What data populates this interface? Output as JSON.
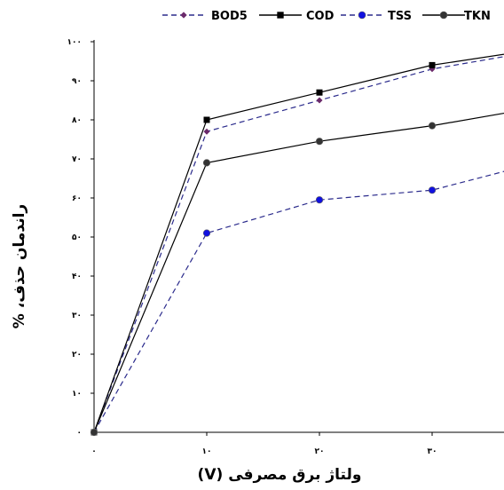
{
  "chart_data": {
    "type": "line",
    "xlabel": "ولتاژ برق مصرفی (V)",
    "ylabel": "راندمان حذف، %",
    "x": [
      0,
      10,
      20,
      30,
      38
    ],
    "xticks": [
      0,
      10,
      20,
      30
    ],
    "xtick_labels": [
      "۰",
      "۱۰",
      "۲۰",
      "۳۰"
    ],
    "yticks": [
      0,
      10,
      20,
      30,
      40,
      50,
      60,
      70,
      80,
      90,
      100
    ],
    "ytick_labels": [
      "۰",
      "۱۰",
      "۲۰",
      "۳۰",
      "۴۰",
      "۵۰",
      "۶۰",
      "۷۰",
      "۸۰",
      "۹۰",
      "۱۰۰"
    ],
    "xlim": [
      0,
      38
    ],
    "ylim": [
      0,
      100
    ],
    "grid": false,
    "legend_position": "top",
    "series": [
      {
        "name": "BOD5",
        "values": [
          0,
          77,
          85,
          93,
          97
        ],
        "color": "#2b2b8c",
        "line_style": "dashed",
        "marker": "diamond",
        "marker_color": "#6b2a6b",
        "marker_at": [
          true,
          true,
          true,
          true,
          false
        ]
      },
      {
        "name": "COD",
        "values": [
          0,
          80,
          87,
          94,
          97.5
        ],
        "color": "#000000",
        "line_style": "solid",
        "marker": "square",
        "marker_color": "#000000",
        "marker_at": [
          true,
          true,
          true,
          true,
          false
        ]
      },
      {
        "name": "TSS",
        "values": [
          0,
          51,
          59.5,
          62,
          68
        ],
        "color": "#2b2b8c",
        "line_style": "dashed",
        "marker": "circle",
        "marker_color": "#1010e0",
        "marker_at": [
          true,
          true,
          true,
          true,
          false
        ]
      },
      {
        "name": "TKN",
        "values": [
          0,
          69,
          74.5,
          78.5,
          82.5
        ],
        "color": "#000000",
        "line_style": "solid",
        "marker": "circle",
        "marker_color": "#333333",
        "marker_at": [
          true,
          true,
          true,
          true,
          false
        ]
      }
    ]
  }
}
